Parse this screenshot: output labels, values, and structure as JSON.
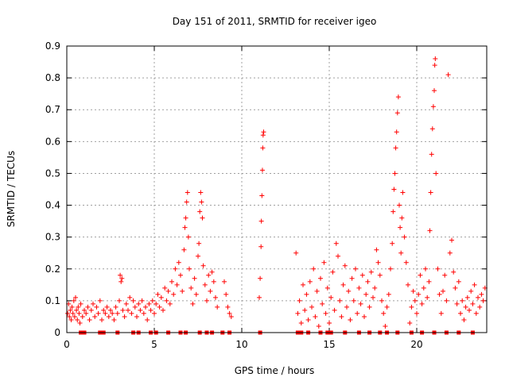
{
  "chart_data": {
    "type": "scatter",
    "title": "Day 151 of 2011, SRMTID for receiver igeo",
    "xlabel": "GPS time / hours",
    "ylabel": "SRMTID / TECUs",
    "xlim": [
      0,
      24
    ],
    "ylim": [
      0,
      0.9
    ],
    "x_ticks": [
      0,
      5,
      10,
      15,
      20
    ],
    "x_tick_labels": [
      "0",
      "5",
      "10",
      "15",
      "20"
    ],
    "y_ticks": [
      0,
      0.1,
      0.2,
      0.3,
      0.4,
      0.5,
      0.6,
      0.7,
      0.8,
      0.9
    ],
    "y_tick_labels": [
      "0",
      "0.1",
      "0.2",
      "0.3",
      "0.4",
      "0.5",
      "0.6",
      "0.7",
      "0.8",
      "0.9"
    ],
    "grid": true,
    "series_color": "#ff0000",
    "series": [
      {
        "name": "SRMTID",
        "marker": "plus",
        "points": [
          [
            0.05,
            0.06
          ],
          [
            0.1,
            0.09
          ],
          [
            0.15,
            0.05
          ],
          [
            0.2,
            0.07
          ],
          [
            0.25,
            0.04
          ],
          [
            0.3,
            0.08
          ],
          [
            0.35,
            0.06
          ],
          [
            0.4,
            0.1
          ],
          [
            0.45,
            0.05
          ],
          [
            0.5,
            0.11
          ],
          [
            0.55,
            0.07
          ],
          [
            0.6,
            0.04
          ],
          [
            0.65,
            0.08
          ],
          [
            0.7,
            0.06
          ],
          [
            0.75,
            0.03
          ],
          [
            0.8,
            0.09
          ],
          [
            0.9,
            0.05
          ],
          [
            1.0,
            0.07
          ],
          [
            1.1,
            0.06
          ],
          [
            1.2,
            0.08
          ],
          [
            1.3,
            0.04
          ],
          [
            1.4,
            0.07
          ],
          [
            1.5,
            0.09
          ],
          [
            1.6,
            0.05
          ],
          [
            1.7,
            0.08
          ],
          [
            1.8,
            0.06
          ],
          [
            1.9,
            0.1
          ],
          [
            2.0,
            0.04
          ],
          [
            2.1,
            0.07
          ],
          [
            2.2,
            0.06
          ],
          [
            2.3,
            0.08
          ],
          [
            2.4,
            0.05
          ],
          [
            2.5,
            0.07
          ],
          [
            2.6,
            0.06
          ],
          [
            2.7,
            0.04
          ],
          [
            2.8,
            0.08
          ],
          [
            2.9,
            0.06
          ],
          [
            3.0,
            0.1
          ],
          [
            3.05,
            0.18
          ],
          [
            3.1,
            0.16
          ],
          [
            3.15,
            0.17
          ],
          [
            3.2,
            0.07
          ],
          [
            3.3,
            0.05
          ],
          [
            3.4,
            0.09
          ],
          [
            3.5,
            0.07
          ],
          [
            3.6,
            0.11
          ],
          [
            3.7,
            0.06
          ],
          [
            3.8,
            0.1
          ],
          [
            3.9,
            0.08
          ],
          [
            4.0,
            0.05
          ],
          [
            4.1,
            0.09
          ],
          [
            4.2,
            0.07
          ],
          [
            4.3,
            0.1
          ],
          [
            4.4,
            0.06
          ],
          [
            4.5,
            0.08
          ],
          [
            4.6,
            0.04
          ],
          [
            4.7,
            0.09
          ],
          [
            4.8,
            0.07
          ],
          [
            4.9,
            0.1
          ],
          [
            5.0,
            0.06
          ],
          [
            5.1,
            0.09
          ],
          [
            5.2,
            0.12
          ],
          [
            5.3,
            0.08
          ],
          [
            5.4,
            0.11
          ],
          [
            5.5,
            0.07
          ],
          [
            5.6,
            0.14
          ],
          [
            5.7,
            0.1
          ],
          [
            5.8,
            0.13
          ],
          [
            5.9,
            0.09
          ],
          [
            6.0,
            0.16
          ],
          [
            6.1,
            0.12
          ],
          [
            6.2,
            0.2
          ],
          [
            6.3,
            0.15
          ],
          [
            6.4,
            0.22
          ],
          [
            6.5,
            0.18
          ],
          [
            6.6,
            0.13
          ],
          [
            6.7,
            0.26
          ],
          [
            6.75,
            0.33
          ],
          [
            6.8,
            0.36
          ],
          [
            6.85,
            0.41
          ],
          [
            6.9,
            0.44
          ],
          [
            6.95,
            0.3
          ],
          [
            7.0,
            0.2
          ],
          [
            7.1,
            0.14
          ],
          [
            7.2,
            0.09
          ],
          [
            7.3,
            0.17
          ],
          [
            7.4,
            0.12
          ],
          [
            7.5,
            0.24
          ],
          [
            7.55,
            0.28
          ],
          [
            7.6,
            0.38
          ],
          [
            7.65,
            0.44
          ],
          [
            7.7,
            0.41
          ],
          [
            7.75,
            0.36
          ],
          [
            7.8,
            0.21
          ],
          [
            7.9,
            0.15
          ],
          [
            8.0,
            0.1
          ],
          [
            8.1,
            0.18
          ],
          [
            8.2,
            0.13
          ],
          [
            8.3,
            0.19
          ],
          [
            8.4,
            0.16
          ],
          [
            8.5,
            0.11
          ],
          [
            8.6,
            0.08
          ],
          [
            9.0,
            0.16
          ],
          [
            9.1,
            0.12
          ],
          [
            9.2,
            0.08
          ],
          [
            9.3,
            0.06
          ],
          [
            9.4,
            0.05
          ],
          [
            11.0,
            0.11
          ],
          [
            11.05,
            0.17
          ],
          [
            11.1,
            0.27
          ],
          [
            11.12,
            0.35
          ],
          [
            11.15,
            0.43
          ],
          [
            11.18,
            0.51
          ],
          [
            11.2,
            0.58
          ],
          [
            11.22,
            0.62
          ],
          [
            11.25,
            0.63
          ],
          [
            13.1,
            0.25
          ],
          [
            13.2,
            0.06
          ],
          [
            13.3,
            0.1
          ],
          [
            13.4,
            0.03
          ],
          [
            13.5,
            0.15
          ],
          [
            13.6,
            0.07
          ],
          [
            13.7,
            0.12
          ],
          [
            13.8,
            0.04
          ],
          [
            13.9,
            0.16
          ],
          [
            14.0,
            0.08
          ],
          [
            14.1,
            0.2
          ],
          [
            14.2,
            0.05
          ],
          [
            14.3,
            0.13
          ],
          [
            14.4,
            0.02
          ],
          [
            14.5,
            0.17
          ],
          [
            14.6,
            0.09
          ],
          [
            14.7,
            0.22
          ],
          [
            14.8,
            0.06
          ],
          [
            14.9,
            0.14
          ],
          [
            15.0,
            0.03
          ],
          [
            15.1,
            0.11
          ],
          [
            15.2,
            0.19
          ],
          [
            15.3,
            0.07
          ],
          [
            15.4,
            0.28
          ],
          [
            15.5,
            0.24
          ],
          [
            15.6,
            0.1
          ],
          [
            15.7,
            0.05
          ],
          [
            15.8,
            0.15
          ],
          [
            15.9,
            0.21
          ],
          [
            16.0,
            0.08
          ],
          [
            16.1,
            0.13
          ],
          [
            16.2,
            0.04
          ],
          [
            16.3,
            0.17
          ],
          [
            16.4,
            0.1
          ],
          [
            16.5,
            0.2
          ],
          [
            16.6,
            0.06
          ],
          [
            16.7,
            0.14
          ],
          [
            16.8,
            0.09
          ],
          [
            16.9,
            0.18
          ],
          [
            17.0,
            0.05
          ],
          [
            17.1,
            0.12
          ],
          [
            17.2,
            0.16
          ],
          [
            17.3,
            0.08
          ],
          [
            17.4,
            0.19
          ],
          [
            17.5,
            0.11
          ],
          [
            17.6,
            0.14
          ],
          [
            17.7,
            0.26
          ],
          [
            17.8,
            0.22
          ],
          [
            17.9,
            0.18
          ],
          [
            18.0,
            0.1
          ],
          [
            18.1,
            0.06
          ],
          [
            18.2,
            0.02
          ],
          [
            18.3,
            0.08
          ],
          [
            18.4,
            0.12
          ],
          [
            18.5,
            0.2
          ],
          [
            18.6,
            0.28
          ],
          [
            18.65,
            0.38
          ],
          [
            18.7,
            0.45
          ],
          [
            18.75,
            0.5
          ],
          [
            18.8,
            0.58
          ],
          [
            18.85,
            0.63
          ],
          [
            18.9,
            0.69
          ],
          [
            18.95,
            0.74
          ],
          [
            19.0,
            0.4
          ],
          [
            19.05,
            0.33
          ],
          [
            19.1,
            0.25
          ],
          [
            19.15,
            0.36
          ],
          [
            19.2,
            0.44
          ],
          [
            19.3,
            0.3
          ],
          [
            19.4,
            0.22
          ],
          [
            19.5,
            0.15
          ],
          [
            19.6,
            0.03
          ],
          [
            19.7,
            0.08
          ],
          [
            19.8,
            0.13
          ],
          [
            19.9,
            0.1
          ],
          [
            20.0,
            0.06
          ],
          [
            20.1,
            0.12
          ],
          [
            20.2,
            0.18
          ],
          [
            20.3,
            0.09
          ],
          [
            20.4,
            0.14
          ],
          [
            20.5,
            0.2
          ],
          [
            20.6,
            0.11
          ],
          [
            20.7,
            0.16
          ],
          [
            20.75,
            0.32
          ],
          [
            20.8,
            0.44
          ],
          [
            20.85,
            0.56
          ],
          [
            20.9,
            0.64
          ],
          [
            20.95,
            0.71
          ],
          [
            21.0,
            0.76
          ],
          [
            21.03,
            0.84
          ],
          [
            21.06,
            0.86
          ],
          [
            21.1,
            0.5
          ],
          [
            21.2,
            0.2
          ],
          [
            21.3,
            0.12
          ],
          [
            21.4,
            0.06
          ],
          [
            21.5,
            0.13
          ],
          [
            21.6,
            0.18
          ],
          [
            21.7,
            0.1
          ],
          [
            21.8,
            0.81
          ],
          [
            21.9,
            0.25
          ],
          [
            22.0,
            0.29
          ],
          [
            22.1,
            0.19
          ],
          [
            22.2,
            0.14
          ],
          [
            22.3,
            0.09
          ],
          [
            22.4,
            0.16
          ],
          [
            22.5,
            0.06
          ],
          [
            22.6,
            0.1
          ],
          [
            22.7,
            0.04
          ],
          [
            22.8,
            0.08
          ],
          [
            22.9,
            0.11
          ],
          [
            23.0,
            0.07
          ],
          [
            23.1,
            0.13
          ],
          [
            23.2,
            0.09
          ],
          [
            23.3,
            0.15
          ],
          [
            23.4,
            0.06
          ],
          [
            23.5,
            0.11
          ],
          [
            23.6,
            0.08
          ],
          [
            23.7,
            0.12
          ],
          [
            23.8,
            0.1
          ],
          [
            23.9,
            0.14
          ]
        ]
      },
      {
        "name": "SRMTID (filled squares at zero)",
        "marker": "square",
        "points": [
          [
            0.8,
            0
          ],
          [
            1.0,
            0
          ],
          [
            1.9,
            0
          ],
          [
            2.1,
            0
          ],
          [
            2.9,
            0
          ],
          [
            3.8,
            0
          ],
          [
            4.1,
            0
          ],
          [
            4.8,
            0
          ],
          [
            5.1,
            0
          ],
          [
            5.8,
            0
          ],
          [
            6.5,
            0
          ],
          [
            6.8,
            0
          ],
          [
            7.6,
            0
          ],
          [
            8.0,
            0
          ],
          [
            8.3,
            0
          ],
          [
            8.9,
            0
          ],
          [
            9.3,
            0
          ],
          [
            11.05,
            0
          ],
          [
            13.2,
            0
          ],
          [
            13.4,
            0
          ],
          [
            13.8,
            0
          ],
          [
            14.5,
            0
          ],
          [
            14.9,
            0
          ],
          [
            15.1,
            0
          ],
          [
            15.9,
            0
          ],
          [
            16.7,
            0
          ],
          [
            17.3,
            0
          ],
          [
            17.9,
            0
          ],
          [
            18.3,
            0
          ],
          [
            18.9,
            0
          ],
          [
            19.7,
            0
          ],
          [
            20.3,
            0
          ],
          [
            21.0,
            0
          ],
          [
            21.7,
            0
          ],
          [
            22.4,
            0
          ],
          [
            23.2,
            0
          ]
        ]
      }
    ]
  }
}
